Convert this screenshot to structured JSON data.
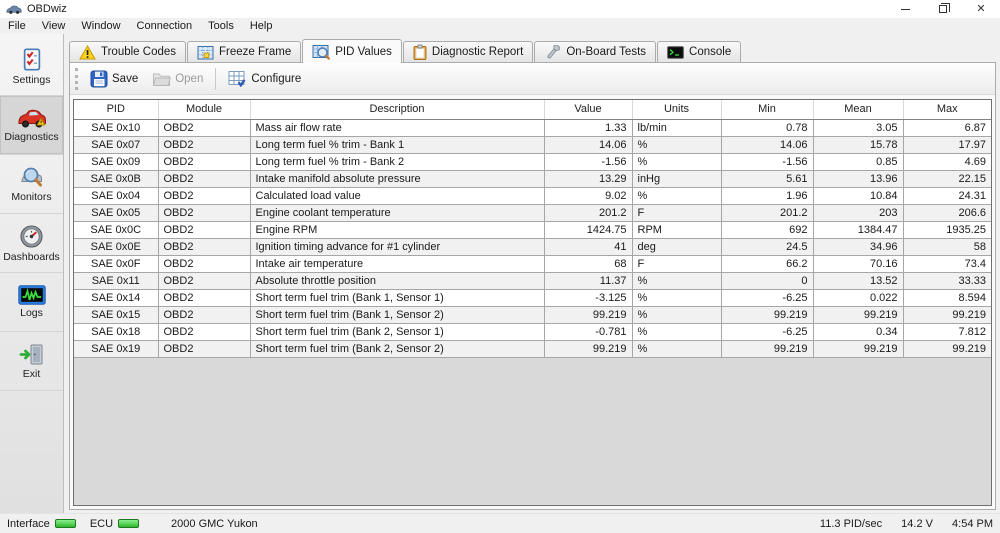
{
  "window": {
    "title": "OBDwiz"
  },
  "menu": {
    "items": [
      "File",
      "View",
      "Window",
      "Connection",
      "Tools",
      "Help"
    ]
  },
  "sidebar": {
    "items": [
      {
        "label": "Settings",
        "icon": "settings-checklist-icon"
      },
      {
        "label": "Diagnostics",
        "icon": "diagnostics-car-icon",
        "active": true
      },
      {
        "label": "Monitors",
        "icon": "monitors-magnifier-icon"
      },
      {
        "label": "Dashboards",
        "icon": "dashboards-gauge-icon"
      },
      {
        "label": "Logs",
        "icon": "logs-waveform-icon"
      },
      {
        "label": "Exit",
        "icon": "exit-door-icon"
      }
    ]
  },
  "tabs": [
    {
      "label": "Trouble Codes",
      "icon": "warning-triangle-icon"
    },
    {
      "label": "Freeze Frame",
      "icon": "freeze-frame-icon"
    },
    {
      "label": "PID Values",
      "icon": "pid-values-icon",
      "active": true
    },
    {
      "label": "Diagnostic Report",
      "icon": "clipboard-icon"
    },
    {
      "label": "On-Board Tests",
      "icon": "wrench-icon"
    },
    {
      "label": "Console",
      "icon": "console-icon"
    }
  ],
  "toolbar": {
    "save_label": "Save",
    "open_label": "Open",
    "configure_label": "Configure"
  },
  "table": {
    "columns": [
      "PID",
      "Module",
      "Description",
      "Value",
      "Units",
      "Min",
      "Mean",
      "Max"
    ],
    "rows": [
      [
        "SAE 0x10",
        "OBD2",
        "Mass air flow rate",
        "1.33",
        "lb/min",
        "0.78",
        "3.05",
        "6.87"
      ],
      [
        "SAE 0x07",
        "OBD2",
        "Long term fuel % trim - Bank 1",
        "14.06",
        "%",
        "14.06",
        "15.78",
        "17.97"
      ],
      [
        "SAE 0x09",
        "OBD2",
        "Long term fuel % trim - Bank 2",
        "-1.56",
        "%",
        "-1.56",
        "0.85",
        "4.69"
      ],
      [
        "SAE 0x0B",
        "OBD2",
        "Intake manifold absolute pressure",
        "13.29",
        "inHg",
        "5.61",
        "13.96",
        "22.15"
      ],
      [
        "SAE 0x04",
        "OBD2",
        "Calculated load value",
        "9.02",
        "%",
        "1.96",
        "10.84",
        "24.31"
      ],
      [
        "SAE 0x05",
        "OBD2",
        "Engine coolant temperature",
        "201.2",
        "F",
        "201.2",
        "203",
        "206.6"
      ],
      [
        "SAE 0x0C",
        "OBD2",
        "Engine RPM",
        "1424.75",
        "RPM",
        "692",
        "1384.47",
        "1935.25"
      ],
      [
        "SAE 0x0E",
        "OBD2",
        "Ignition timing advance for #1 cylinder",
        "41",
        "deg",
        "24.5",
        "34.96",
        "58"
      ],
      [
        "SAE 0x0F",
        "OBD2",
        "Intake air temperature",
        "68",
        "F",
        "66.2",
        "70.16",
        "73.4"
      ],
      [
        "SAE 0x11",
        "OBD2",
        "Absolute throttle position",
        "11.37",
        "%",
        "0",
        "13.52",
        "33.33"
      ],
      [
        "SAE 0x14",
        "OBD2",
        "Short term fuel trim (Bank 1, Sensor 1)",
        "-3.125",
        "%",
        "-6.25",
        "0.022",
        "8.594"
      ],
      [
        "SAE 0x15",
        "OBD2",
        "Short term fuel trim (Bank 1, Sensor 2)",
        "99.219",
        "%",
        "99.219",
        "99.219",
        "99.219"
      ],
      [
        "SAE 0x18",
        "OBD2",
        "Short term fuel trim (Bank 2, Sensor 1)",
        "-0.781",
        "%",
        "-6.25",
        "0.34",
        "7.812"
      ],
      [
        "SAE 0x19",
        "OBD2",
        "Short term fuel trim (Bank 2, Sensor 2)",
        "99.219",
        "%",
        "99.219",
        "99.219",
        "99.219"
      ]
    ]
  },
  "statusbar": {
    "interface_label": "Interface",
    "ecu_label": "ECU",
    "vehicle": "2000 GMC Yukon",
    "pid_rate": "11.3 PID/sec",
    "voltage": "14.2 V",
    "time": "4:54 PM",
    "led_color": "#2db82d"
  }
}
